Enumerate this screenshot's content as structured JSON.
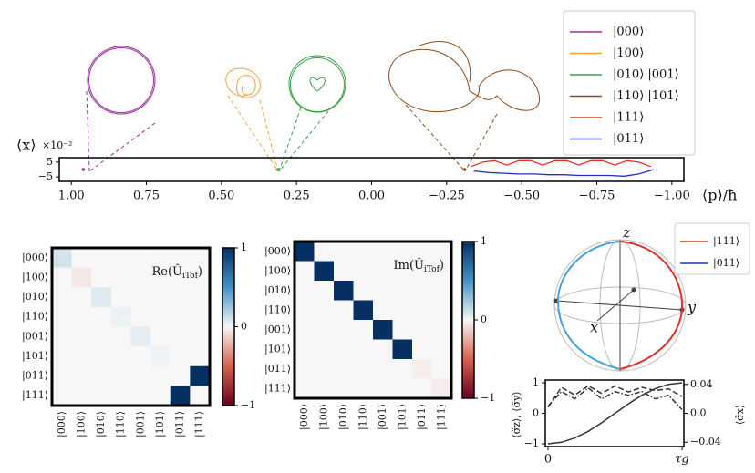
{
  "chart_data": [
    {
      "type": "phase",
      "xlabel": "⟨p⟩/ħ",
      "ylabel": "⟨x⟩",
      "yscale_label": "×10⁻²",
      "xlim": [
        1.04,
        -1.04
      ],
      "xticks": [
        {
          "value": 1,
          "label": "1.00"
        },
        0.75,
        {
          "value": 0.5,
          "label": "0.50"
        },
        0.25,
        {
          "value": 0,
          "label": "0.00"
        },
        {
          "value": -0.25,
          "label": "−0.25"
        },
        {
          "value": -0.5,
          "label": "−0.50"
        },
        {
          "value": -0.75,
          "label": "−0.75"
        },
        {
          "value": -1,
          "label": "−1.00"
        }
      ],
      "ylim": [
        -8,
        8
      ],
      "yticks": [
        5,
        {
          "value": -5,
          "label": "−5"
        }
      ],
      "series": [
        {
          "name": "|000⟩",
          "color": "#9b30a0",
          "x": [
            0.96
          ],
          "y": [
            0
          ]
        },
        {
          "name": "|100⟩",
          "color": "#f5a041",
          "x": [
            0.315
          ],
          "y": [
            0
          ]
        },
        {
          "name": "|010⟩ |001⟩",
          "color": "#3aa047",
          "x": [
            0.31
          ],
          "y": [
            0
          ]
        },
        {
          "name": "|110⟩ |101⟩",
          "color": "#8b4a1c",
          "x": [
            -0.31
          ],
          "y": [
            0
          ]
        },
        {
          "name": "|111⟩",
          "color": "#e0302a",
          "x": [
            -0.33,
            -0.37,
            -0.41,
            -0.45,
            -0.49,
            -0.53,
            -0.57,
            -0.61,
            -0.65,
            -0.69,
            -0.73,
            -0.77,
            -0.81,
            -0.85,
            -0.89,
            -0.93
          ],
          "y": [
            2,
            5,
            6,
            3,
            6,
            6,
            3,
            6,
            6,
            3,
            6,
            6,
            3,
            6,
            5,
            2
          ]
        },
        {
          "name": "|011⟩",
          "color": "#2030c0",
          "x": [
            -0.34,
            -0.39,
            -0.44,
            -0.49,
            -0.54,
            -0.59,
            -0.64,
            -0.69,
            -0.74,
            -0.79,
            -0.84,
            -0.89,
            -0.94
          ],
          "y": [
            -1,
            -2,
            -2.5,
            -3,
            -3,
            -3.5,
            -3.5,
            -4,
            -4,
            -4,
            -4.5,
            -3,
            0
          ]
        }
      ]
    },
    {
      "type": "heatmap",
      "title_parts": [
        "Re(Û",
        "iTof",
        ")"
      ],
      "rows": [
        "|000⟩",
        "|100⟩",
        "|010⟩",
        "|110⟩",
        "|001⟩",
        "|101⟩",
        "|011⟩",
        "|111⟩"
      ],
      "columns": [
        "|000⟩",
        "|100⟩",
        "|010⟩",
        "|110⟩",
        "|001⟩",
        "|101⟩",
        "|011⟩",
        "|111⟩"
      ],
      "vlim": [
        -1,
        1
      ],
      "ticks": [
        1,
        0,
        {
          "value": -1,
          "label": "−1"
        }
      ],
      "values": [
        [
          0.1,
          0,
          0,
          0,
          0,
          0,
          0,
          0
        ],
        [
          0,
          -0.05,
          0,
          0,
          0,
          0,
          0,
          0
        ],
        [
          0,
          0,
          0.07,
          0,
          0,
          0,
          0,
          0
        ],
        [
          0,
          0,
          0,
          0.03,
          0,
          0,
          0,
          0
        ],
        [
          0,
          0,
          0,
          0,
          0.05,
          0,
          0,
          0
        ],
        [
          0,
          0,
          0,
          0,
          0,
          0.02,
          0,
          0
        ],
        [
          0,
          0,
          0,
          0,
          0,
          0,
          0,
          1
        ],
        [
          0,
          0,
          0,
          0,
          0,
          0,
          1,
          0
        ]
      ]
    },
    {
      "type": "heatmap",
      "title_parts": [
        "Im(Û",
        "iTof",
        ")"
      ],
      "rows": [
        "|000⟩",
        "|100⟩",
        "|010⟩",
        "|110⟩",
        "|001⟩",
        "|101⟩",
        "|011⟩",
        "|111⟩"
      ],
      "columns": [
        "|000⟩",
        "|100⟩",
        "|010⟩",
        "|110⟩",
        "|001⟩",
        "|101⟩",
        "|011⟩",
        "|111⟩"
      ],
      "vlim": [
        -1,
        1
      ],
      "ticks": [
        1,
        0,
        {
          "value": -1,
          "label": "−1"
        }
      ],
      "values": [
        [
          1,
          0,
          0,
          0,
          0,
          0,
          0,
          0
        ],
        [
          0,
          1,
          0,
          0,
          0,
          0,
          0,
          0
        ],
        [
          0,
          0,
          1,
          0,
          0,
          0,
          0,
          0
        ],
        [
          0,
          0,
          0,
          1,
          0,
          0,
          0,
          0
        ],
        [
          0,
          0,
          0,
          0,
          1,
          0,
          0,
          0
        ],
        [
          0,
          0,
          0,
          0,
          0,
          1,
          0,
          0
        ],
        [
          0,
          0,
          0,
          0,
          0,
          0,
          -0.03,
          0
        ],
        [
          0,
          0,
          0,
          0,
          0,
          0,
          0,
          -0.03
        ]
      ]
    },
    {
      "type": "bloch",
      "axis_labels": {
        "z": "z",
        "y": "y",
        "x": "x"
      },
      "series": [
        {
          "name": "|111⟩",
          "color": "#e0302a"
        },
        {
          "name": "|011⟩",
          "color": "#2030c0"
        }
      ]
    },
    {
      "type": "line",
      "ylabel": "⟨σ̂z⟩, ⟨σ̂y⟩",
      "y2label": "⟨σ̂x⟩",
      "x": [
        0,
        0.1,
        0.2,
        0.3,
        0.4,
        0.5,
        0.6,
        0.7,
        0.8,
        0.9,
        1
      ],
      "xlim": [
        0,
        1
      ],
      "xticks": [
        0,
        {
          "value": 1,
          "label": "τg"
        }
      ],
      "ylim": [
        -1.09,
        1.09
      ],
      "yticks": [
        {
          "value": -1,
          "label": "−1"
        },
        0,
        1
      ],
      "y2lim": [
        -0.046,
        0.046
      ],
      "y2ticks": [
        {
          "value": -0.04,
          "label": "−0.04"
        },
        {
          "value": 0,
          "label": "0.0"
        },
        0.04
      ],
      "series": [
        {
          "color": "#333333",
          "dash": "solid",
          "values": [
            -1,
            -0.95,
            -0.81,
            -0.59,
            -0.31,
            0,
            0.31,
            0.59,
            0.81,
            0.95,
            1
          ]
        },
        {
          "color": "#333333",
          "dash": "dashed",
          "values": [
            0.2,
            0.85,
            0.6,
            0.9,
            0.65,
            0.9,
            0.7,
            0.85,
            0.75,
            0.8,
            0.55
          ]
        },
        {
          "color": "#333333",
          "dash": "dashdot",
          "axis": "y2",
          "values": [
            0.01,
            0.03,
            0.02,
            0.035,
            0.02,
            0.03,
            0.025,
            0.03,
            0.02,
            0.025,
            0.005
          ]
        }
      ]
    }
  ]
}
